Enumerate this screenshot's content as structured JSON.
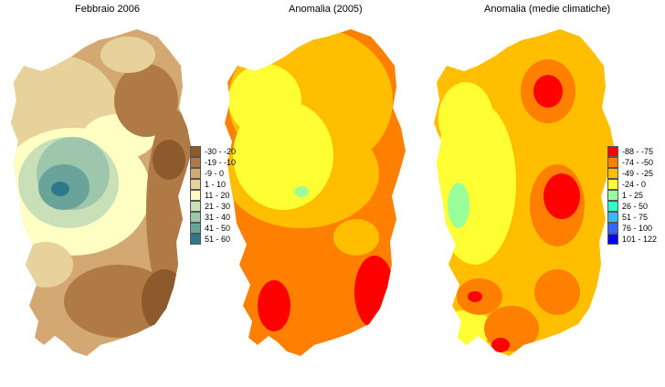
{
  "panels": [
    {
      "title": "Febbraio 2006"
    },
    {
      "title": "Anomalia (2005)"
    },
    {
      "title": "Anomalia (medie climatiche)"
    }
  ],
  "legend_rainfall": [
    {
      "label": "-30 - -20",
      "color": "#8c5a2b"
    },
    {
      "label": "-19 - -10",
      "color": "#b07a46"
    },
    {
      "label": "-9 - 0",
      "color": "#d3a873"
    },
    {
      "label": "1 - 10",
      "color": "#e8d29c"
    },
    {
      "label": "11 - 20",
      "color": "#ffffc4"
    },
    {
      "label": "21 - 30",
      "color": "#c9dfb8"
    },
    {
      "label": "31 - 40",
      "color": "#9dc6ad"
    },
    {
      "label": "41 - 50",
      "color": "#6aa39a"
    },
    {
      "label": "51 - 60",
      "color": "#2f7a8a"
    }
  ],
  "legend_anomaly": [
    {
      "label": "-88 - -75",
      "color": "#ff0000"
    },
    {
      "label": "-74 - -50",
      "color": "#ff8000"
    },
    {
      "label": "-49 - -25",
      "color": "#ffbf00"
    },
    {
      "label": "-24 - 0",
      "color": "#ffff33"
    },
    {
      "label": "1 - 25",
      "color": "#99ff99"
    },
    {
      "label": "26 - 50",
      "color": "#33ffcc"
    },
    {
      "label": "51 - 75",
      "color": "#33bbff"
    },
    {
      "label": "76 - 100",
      "color": "#3366ff"
    },
    {
      "label": "101 - 122",
      "color": "#0000ff"
    }
  ]
}
